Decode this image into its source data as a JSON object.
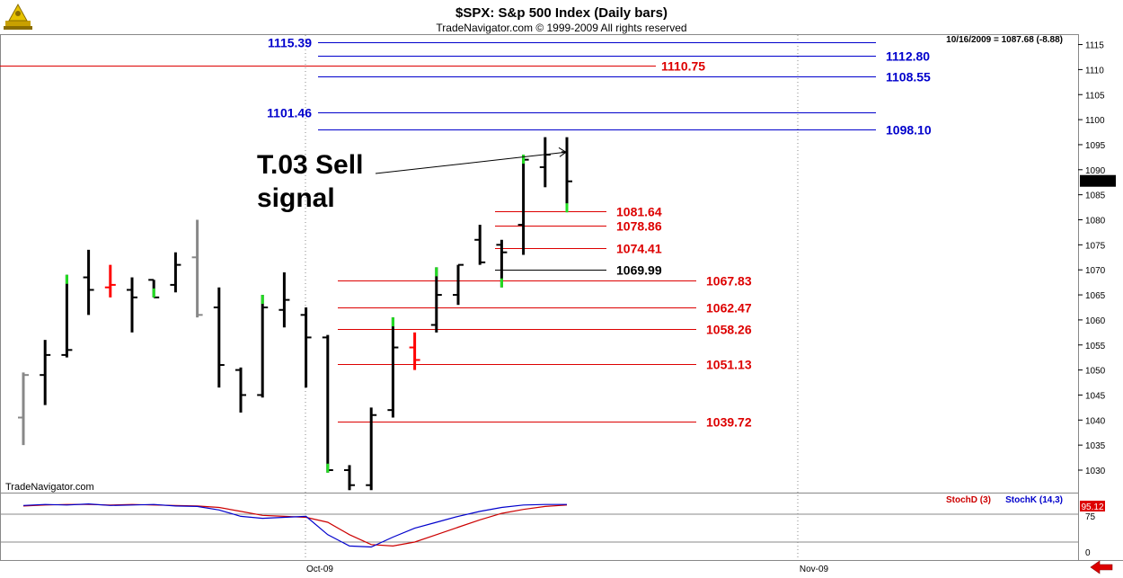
{
  "header": {
    "title": "$SPX:  S&p 500 Index  (Daily bars)",
    "copyright": "TradeNavigator.com © 1999-2009 All rights reserved",
    "last_quote": "10/16/2009 = 1087.68 (-8.88)",
    "watermark": "TradeNavigator.com"
  },
  "icons": {
    "logo": "sextant-icon",
    "scroll": "left-arrow-icon"
  },
  "colors": {
    "up_bar": "#22dd22",
    "down_bar": "#ff0000",
    "blue_level": "#0000cc",
    "red_level": "#dd0000",
    "stoch_d": "#cc0000",
    "stoch_k": "#0000cc"
  },
  "chart_data": [
    {
      "type": "ohlc",
      "y_axis_ticks": [
        1030,
        1035,
        1040,
        1045,
        1050,
        1055,
        1060,
        1065,
        1070,
        1075,
        1080,
        1085,
        1090,
        1095,
        1100,
        1105,
        1110,
        1115
      ],
      "ylim": [
        1026,
        1120
      ],
      "x_labels": [
        "Oct-09",
        "Nov-09"
      ],
      "last_price_label": "1087.68",
      "bars": [
        {
          "o": 1040.5,
          "h": 1049.5,
          "l": 1035.0,
          "c": 1049.0,
          "color": "#888888"
        },
        {
          "o": 1049.0,
          "h": 1056.0,
          "l": 1043.0,
          "c": 1053.0,
          "color": "#000000"
        },
        {
          "o": 1053.0,
          "h": 1069.0,
          "l": 1052.5,
          "c": 1054.0,
          "color": "#22dd22"
        },
        {
          "o": 1068.5,
          "h": 1074.0,
          "l": 1061.0,
          "c": 1066.0,
          "color": "#000000"
        },
        {
          "o": 1066.5,
          "h": 1071.0,
          "l": 1064.5,
          "c": 1067.0,
          "color": "#ff0000"
        },
        {
          "o": 1066.0,
          "h": 1068.5,
          "l": 1057.5,
          "c": 1064.5,
          "color": "#000000"
        },
        {
          "o": 1068.0,
          "h": 1068.0,
          "l": 1064.5,
          "c": 1064.5,
          "color": "#22dd22"
        },
        {
          "o": 1067.0,
          "h": 1073.5,
          "l": 1065.5,
          "c": 1071.0,
          "color": "#000000"
        },
        {
          "o": 1072.5,
          "h": 1080.0,
          "l": 1060.5,
          "c": 1061.0,
          "color": "#888888"
        },
        {
          "o": 1062.5,
          "h": 1066.5,
          "l": 1046.5,
          "c": 1051.0,
          "color": "#000000"
        },
        {
          "o": 1050.0,
          "h": 1050.5,
          "l": 1041.5,
          "c": 1045.0,
          "color": "#000000"
        },
        {
          "o": 1045.0,
          "h": 1065.0,
          "l": 1044.5,
          "c": 1062.5,
          "color": "#22dd22"
        },
        {
          "o": 1062.0,
          "h": 1069.5,
          "l": 1058.5,
          "c": 1064.0,
          "color": "#000000"
        },
        {
          "o": 1061.0,
          "h": 1062.5,
          "l": 1046.5,
          "c": 1056.5,
          "color": "#000000"
        },
        {
          "o": 1056.5,
          "h": 1057.0,
          "l": 1029.5,
          "c": 1030.0,
          "color": "#22dd22"
        },
        {
          "o": 1030.0,
          "h": 1031.0,
          "l": 1026.0,
          "c": 1027.0,
          "color": "#000000"
        },
        {
          "o": 1027.0,
          "h": 1042.5,
          "l": 1026.0,
          "c": 1041.0,
          "color": "#000000"
        },
        {
          "o": 1042.0,
          "h": 1060.5,
          "l": 1040.5,
          "c": 1054.5,
          "color": "#22dd22"
        },
        {
          "o": 1054.5,
          "h": 1057.5,
          "l": 1050.0,
          "c": 1052.0,
          "color": "#ff0000"
        },
        {
          "o": 1059.0,
          "h": 1070.5,
          "l": 1057.5,
          "c": 1065.0,
          "color": "#22dd22"
        },
        {
          "o": 1065.0,
          "h": 1071.0,
          "l": 1063.0,
          "c": 1071.0,
          "color": "#000000"
        },
        {
          "o": 1076.0,
          "h": 1079.0,
          "l": 1071.0,
          "c": 1071.5,
          "color": "#000000"
        },
        {
          "o": 1075.0,
          "h": 1076.0,
          "l": 1066.5,
          "c": 1073.5,
          "color": "#22dd22"
        },
        {
          "o": 1079.0,
          "h": 1093.0,
          "l": 1073.0,
          "c": 1092.0,
          "color": "#22dd22"
        },
        {
          "o": 1090.5,
          "h": 1096.5,
          "l": 1086.5,
          "c": 1093.0,
          "color": "#000000"
        },
        {
          "o": 1093.5,
          "h": 1096.5,
          "l": 1081.5,
          "c": 1087.68,
          "color": "#22dd22"
        }
      ],
      "levels": [
        {
          "value": 1115.39,
          "label": "1115.39",
          "color": "#0000cc",
          "label_side": "left"
        },
        {
          "value": 1112.8,
          "label": "1112.80",
          "color": "#0000cc",
          "label_side": "right"
        },
        {
          "value": 1110.75,
          "label": "1110.75",
          "color": "#dd0000",
          "label_side": "right"
        },
        {
          "value": 1108.55,
          "label": "1108.55",
          "color": "#0000cc",
          "label_side": "right"
        },
        {
          "value": 1101.46,
          "label": "1101.46",
          "color": "#0000cc",
          "label_side": "left"
        },
        {
          "value": 1098.1,
          "label": "1098.10",
          "color": "#0000cc",
          "label_side": "right"
        },
        {
          "value": 1081.64,
          "label": "1081.64",
          "color": "#dd0000",
          "label_side": "right"
        },
        {
          "value": 1078.86,
          "label": "1078.86",
          "color": "#dd0000",
          "label_side": "right"
        },
        {
          "value": 1074.41,
          "label": "1074.41",
          "color": "#dd0000",
          "label_side": "right"
        },
        {
          "value": 1069.99,
          "label": "1069.99",
          "color": "#000000",
          "label_side": "right"
        },
        {
          "value": 1067.83,
          "label": "1067.83",
          "color": "#dd0000",
          "label_side": "right"
        },
        {
          "value": 1062.47,
          "label": "1062.47",
          "color": "#dd0000",
          "label_side": "right"
        },
        {
          "value": 1058.26,
          "label": "1058.26",
          "color": "#dd0000",
          "label_side": "right"
        },
        {
          "value": 1051.13,
          "label": "1051.13",
          "color": "#dd0000",
          "label_side": "right"
        },
        {
          "value": 1039.72,
          "label": "1039.72",
          "color": "#dd0000",
          "label_side": "right"
        }
      ],
      "annotations": [
        {
          "text": "T.03 Sell",
          "price": 1093.5
        },
        {
          "text": "signal"
        }
      ]
    },
    {
      "type": "line",
      "legend": [
        "StochD (3)",
        "StochK (14,3)"
      ],
      "y_ticks": [
        75,
        0
      ],
      "last_value_label": "95.12",
      "series": [
        {
          "name": "StochD (3)",
          "color": "#cc0000",
          "values": [
            93,
            95,
            96,
            96,
            95,
            96,
            95,
            94,
            93,
            90,
            82,
            74,
            72,
            70,
            60,
            35,
            15,
            12,
            20,
            35,
            50,
            65,
            78,
            86,
            92,
            95
          ]
        },
        {
          "name": "StochK (14,3)",
          "color": "#0000cc",
          "values": [
            94,
            96,
            95,
            97,
            94,
            95,
            96,
            93,
            92,
            85,
            72,
            68,
            70,
            72,
            35,
            12,
            10,
            30,
            48,
            60,
            72,
            82,
            90,
            95,
            96,
            96
          ]
        }
      ]
    }
  ]
}
